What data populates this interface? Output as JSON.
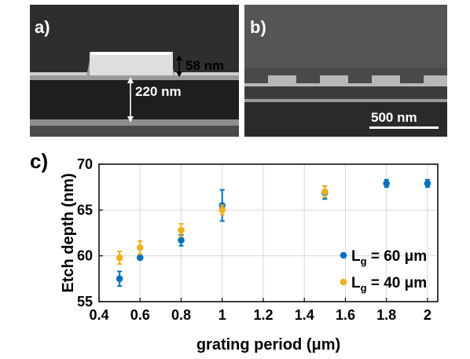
{
  "panels": {
    "a": {
      "label": "a)",
      "dim_thickness": "220 nm",
      "dim_etch": "58 nm"
    },
    "b": {
      "label": "b)",
      "scale_bar": "500 nm"
    },
    "c": {
      "label": "c)"
    }
  },
  "chart_data": {
    "type": "scatter",
    "xlabel": "grating period (μm)",
    "ylabel": "Etch depth (nm)",
    "xlim": [
      0.4,
      2.05
    ],
    "ylim": [
      55,
      70
    ],
    "xticks": [
      "0.4",
      "0.6",
      "0.8",
      "1",
      "1.2",
      "1.4",
      "1.6",
      "1.8",
      "2"
    ],
    "yticks": [
      "55",
      "60",
      "65",
      "70"
    ],
    "grid": true,
    "legend_position": "bottom-right",
    "series": [
      {
        "name": "Lg = 60 μm",
        "legend_main": "L",
        "legend_sub": "g",
        "legend_rest": " = 60 μm",
        "color": "#0072BD",
        "x": [
          0.5,
          0.6,
          0.8,
          1.0,
          1.5,
          1.8,
          2.0
        ],
        "y": [
          57.5,
          59.8,
          61.7,
          65.5,
          66.9,
          67.9,
          67.9
        ],
        "err": [
          0.8,
          0.2,
          0.6,
          1.7,
          0.7,
          0.4,
          0.4
        ]
      },
      {
        "name": "Lg = 40 μm",
        "legend_main": "L",
        "legend_sub": "g",
        "legend_rest": " = 40 μm",
        "color": "#EDB120",
        "x": [
          0.5,
          0.6,
          0.8,
          1.0,
          1.5
        ],
        "y": [
          59.8,
          60.9,
          62.8,
          65.0,
          67.0
        ],
        "err": [
          0.7,
          0.7,
          0.7,
          0.5,
          0.6
        ]
      }
    ]
  }
}
